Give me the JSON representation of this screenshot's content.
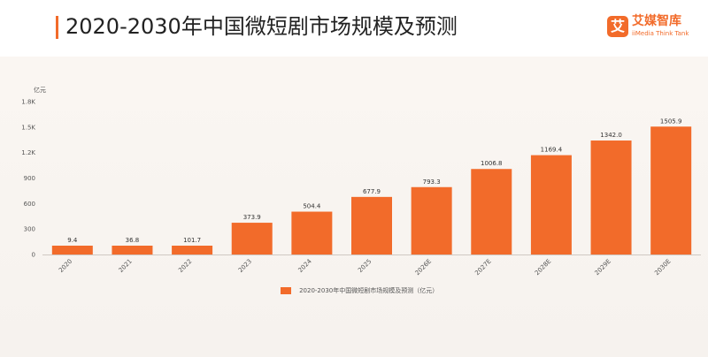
{
  "header": {
    "title": "2020-2030年中国微短剧市场规模及预测",
    "logo_mark": "艾",
    "logo_name": "艾媒智库",
    "logo_sub": "iiMedia Think Tank"
  },
  "colors": {
    "bar": "#F26B2A",
    "accent": "#F26B2A"
  },
  "chart_data": {
    "type": "bar",
    "unit_label": "亿元",
    "categories": [
      "2020",
      "2021",
      "2022",
      "2023",
      "2024",
      "2025",
      "2026E",
      "2027E",
      "2028E",
      "2029E",
      "2030E"
    ],
    "series": [
      {
        "name": "2020-2030年中国微短剧市场规模及预测（亿元）",
        "values": [
          9.4,
          36.8,
          101.7,
          373.9,
          504.4,
          677.9,
          793.3,
          1006.8,
          1169.4,
          1342.0,
          1505.9
        ],
        "value_labels": [
          "9.4",
          "36.8",
          "101.7",
          "373.9",
          "504.4",
          "677.9",
          "793.3",
          "1006.8",
          "1169.4",
          "1342.0",
          "1505.9"
        ]
      }
    ],
    "y_ticks": [
      {
        "value": 0,
        "label": "0"
      },
      {
        "value": 300,
        "label": "300"
      },
      {
        "value": 600,
        "label": "600"
      },
      {
        "value": 900,
        "label": "900"
      },
      {
        "value": 1200,
        "label": "1.2K"
      },
      {
        "value": 1500,
        "label": "1.5K"
      },
      {
        "value": 1800,
        "label": "1.8K"
      }
    ],
    "ylim": [
      0,
      1800
    ],
    "grid": false,
    "legend_position": "bottom"
  }
}
